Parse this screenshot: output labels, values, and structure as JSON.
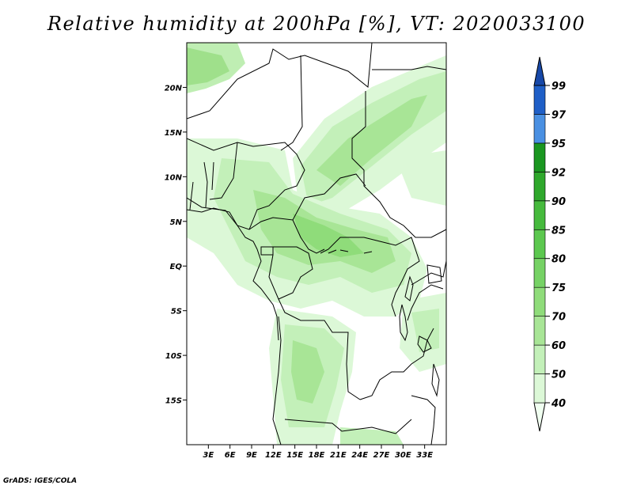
{
  "title": "Relative humidity at 200hPa [%], VT: 2020033100",
  "credit": "GrADS: IGES/COLA",
  "map": {
    "lon_range": [
      0,
      36
    ],
    "lat_range": [
      -20,
      25
    ],
    "lat_ticks": [
      "20N",
      "15N",
      "10N",
      "5N",
      "EQ",
      "5S",
      "10S",
      "15S"
    ],
    "lon_ticks": [
      "3E",
      "6E",
      "9E",
      "12E",
      "15E",
      "18E",
      "21E",
      "24E",
      "27E",
      "30E",
      "33E"
    ]
  },
  "colorbar": {
    "levels": [
      "40",
      "50",
      "60",
      "70",
      "75",
      "80",
      "85",
      "90",
      "92",
      "95",
      "97",
      "99"
    ],
    "colors": [
      "#f0fff0",
      "#dcf8d7",
      "#c3f0b9",
      "#a8e596",
      "#8fdc7a",
      "#76d265",
      "#5cc84f",
      "#46ba3d",
      "#2fa82c",
      "#1a9620",
      "#4a90e2",
      "#1f5fc7",
      "#1748a8"
    ]
  }
}
